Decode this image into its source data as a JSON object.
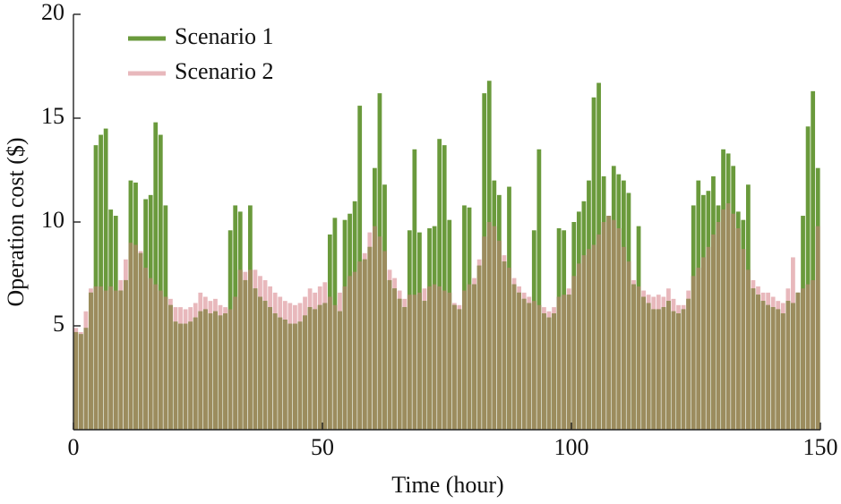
{
  "chart_data": {
    "type": "bar",
    "x_label": "Time (hour)",
    "y_label": "Operation cost ($)",
    "x": [
      1,
      2,
      3,
      4,
      5,
      6,
      7,
      8,
      9,
      10,
      11,
      12,
      13,
      14,
      15,
      16,
      17,
      18,
      19,
      20,
      21,
      22,
      23,
      24,
      25,
      26,
      27,
      28,
      29,
      30,
      31,
      32,
      33,
      34,
      35,
      36,
      37,
      38,
      39,
      40,
      41,
      42,
      43,
      44,
      45,
      46,
      47,
      48,
      49,
      50,
      51,
      52,
      53,
      54,
      55,
      56,
      57,
      58,
      59,
      60,
      61,
      62,
      63,
      64,
      65,
      66,
      67,
      68,
      69,
      70,
      71,
      72,
      73,
      74,
      75,
      76,
      77,
      78,
      79,
      80,
      81,
      82,
      83,
      84,
      85,
      86,
      87,
      88,
      89,
      90,
      91,
      92,
      93,
      94,
      95,
      96,
      97,
      98,
      99,
      100,
      101,
      102,
      103,
      104,
      105,
      106,
      107,
      108,
      109,
      110,
      111,
      112,
      113,
      114,
      115,
      116,
      117,
      118,
      119,
      120,
      121,
      122,
      123,
      124,
      125,
      126,
      127,
      128,
      129,
      130,
      131,
      132,
      133,
      134,
      135,
      136,
      137,
      138,
      139,
      140,
      141,
      142,
      143,
      144,
      145,
      146,
      147,
      148,
      149,
      150
    ],
    "series": [
      {
        "name": "Scenario 1",
        "color": "#6a9a3c",
        "values": [
          4.7,
          4.6,
          4.9,
          6.6,
          13.7,
          14.2,
          14.5,
          10.6,
          10.3,
          6.7,
          7.2,
          12.0,
          11.9,
          8.5,
          11.1,
          11.3,
          14.8,
          14.2,
          10.8,
          6.0,
          5.2,
          5.1,
          5.1,
          5.2,
          5.4,
          5.7,
          5.8,
          5.6,
          5.7,
          5.5,
          5.6,
          9.6,
          10.8,
          10.5,
          7.2,
          10.8,
          6.8,
          6.4,
          6.2,
          5.9,
          5.6,
          5.4,
          5.3,
          5.1,
          5.1,
          5.2,
          5.5,
          5.9,
          5.8,
          6.0,
          6.1,
          9.4,
          10.2,
          5.7,
          10.1,
          10.4,
          11.0,
          15.6,
          8.2,
          8.8,
          12.6,
          16.2,
          11.8,
          7.2,
          6.8,
          6.3,
          5.9,
          9.6,
          13.5,
          9.5,
          6.2,
          9.7,
          9.8,
          14.0,
          13.7,
          10.1,
          6.0,
          5.8,
          10.8,
          10.7,
          7.0,
          7.9,
          16.2,
          16.8,
          12.0,
          11.3,
          8.1,
          11.7,
          7.0,
          6.6,
          6.3,
          6.1,
          9.6,
          13.5,
          5.6,
          5.4,
          5.6,
          9.7,
          9.6,
          6.5,
          10.0,
          10.5,
          11.0,
          12.0,
          16.0,
          16.7,
          12.2,
          10.3,
          12.7,
          12.3,
          12.0,
          11.4,
          7.0,
          9.8,
          6.4,
          6.1,
          5.8,
          5.8,
          5.9,
          6.2,
          5.7,
          5.6,
          5.8,
          6.3,
          10.8,
          12.0,
          11.3,
          11.5,
          12.2,
          10.8,
          13.5,
          13.3,
          12.7,
          10.5,
          10.1,
          11.8,
          6.8,
          6.5,
          6.2,
          6.0,
          5.9,
          5.8,
          5.6,
          6.2,
          6.1,
          6.6,
          10.3,
          14.6,
          16.3,
          12.6
        ]
      },
      {
        "name": "Scenario 2",
        "color": "#e8b8bc",
        "values": [
          4.9,
          4.7,
          5.7,
          6.8,
          6.9,
          6.9,
          6.7,
          6.9,
          6.7,
          7.2,
          8.2,
          9.0,
          8.9,
          8.6,
          7.8,
          7.3,
          7.0,
          6.7,
          6.4,
          6.3,
          5.9,
          5.9,
          5.8,
          5.9,
          6.1,
          6.6,
          6.4,
          6.2,
          6.3,
          6.0,
          5.9,
          5.8,
          6.4,
          7.7,
          7.6,
          7.7,
          7.7,
          7.4,
          7.2,
          6.9,
          6.6,
          6.4,
          6.2,
          6.1,
          6.0,
          6.1,
          6.4,
          6.8,
          6.6,
          6.9,
          7.1,
          6.4,
          6.0,
          6.6,
          6.9,
          7.4,
          7.6,
          8.1,
          8.5,
          9.5,
          9.8,
          9.3,
          8.6,
          7.7,
          7.3,
          6.7,
          6.3,
          6.5,
          6.5,
          6.6,
          6.8,
          6.9,
          7.0,
          6.9,
          6.7,
          6.6,
          6.1,
          6.0,
          6.7,
          7.0,
          7.3,
          8.2,
          9.3,
          10.0,
          9.8,
          9.1,
          8.4,
          7.8,
          7.3,
          6.9,
          6.6,
          6.4,
          6.2,
          6.0,
          5.9,
          5.7,
          5.9,
          6.4,
          6.5,
          6.8,
          7.4,
          8.0,
          8.4,
          8.7,
          8.9,
          9.4,
          10.0,
          10.3,
          10.1,
          9.7,
          8.8,
          8.1,
          7.2,
          6.9,
          6.7,
          6.5,
          6.4,
          6.5,
          6.4,
          6.8,
          6.3,
          6.0,
          6.0,
          6.7,
          7.4,
          7.8,
          8.3,
          8.8,
          9.4,
          10.0,
          10.6,
          10.9,
          10.4,
          9.7,
          8.7,
          7.7,
          7.2,
          6.9,
          6.6,
          6.6,
          6.4,
          6.2,
          6.1,
          6.8,
          8.3,
          6.6,
          6.8,
          7.0,
          7.2,
          9.8
        ]
      }
    ],
    "overlap_color": "#9c8c5e",
    "xlim": [
      0,
      150
    ],
    "xticks": [
      0,
      50,
      100,
      150
    ],
    "ylim": [
      0,
      20
    ],
    "yticks": [
      5,
      10,
      15,
      20
    ],
    "legend": "upper left"
  }
}
